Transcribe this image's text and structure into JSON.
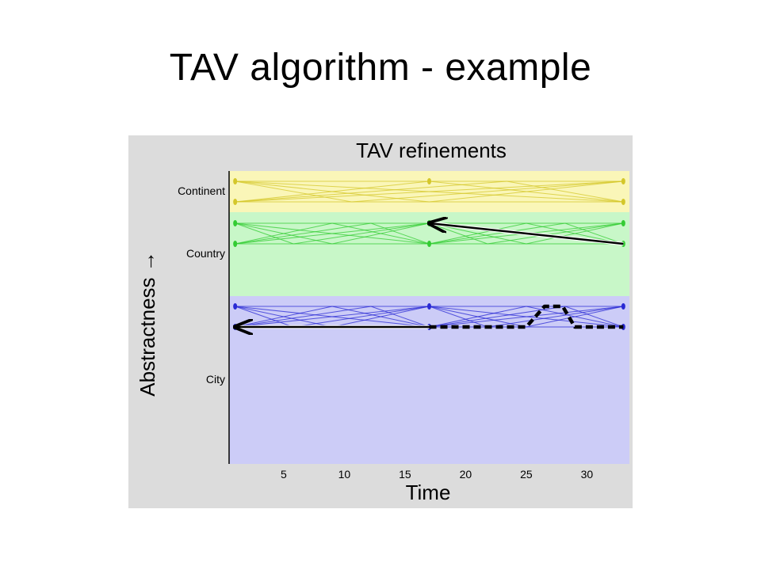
{
  "slide": {
    "title": "TAV algorithm - example"
  },
  "chart_data": {
    "type": "line",
    "title": "TAV refinements",
    "xlabel": "Time",
    "ylabel": "Abstractness →",
    "x_ticks": [
      5,
      10,
      15,
      20,
      25,
      30
    ],
    "xlim": [
      0.5,
      33.5
    ],
    "colors": {
      "Continent": "#d4c72a",
      "Country": "#33cc33",
      "City": "#2a2ad4",
      "Continent_band": "#faf6b8",
      "Country_band": "#c8f7c8",
      "City_band": "#ccccf7"
    },
    "levels": [
      {
        "name": "Continent",
        "rows": [
          1,
          2
        ],
        "nodes": [
          {
            "x": 1,
            "row": 1
          },
          {
            "x": 1,
            "row": 2
          },
          {
            "x": 17,
            "row": 1
          },
          {
            "x": 33,
            "row": 1
          },
          {
            "x": 33,
            "row": 2
          }
        ],
        "segments": [
          [
            1,
            33
          ]
        ]
      },
      {
        "name": "Country",
        "rows": [
          1,
          2
        ],
        "nodes": [
          {
            "x": 1,
            "row": 1
          },
          {
            "x": 1,
            "row": 2
          },
          {
            "x": 17,
            "row": 1
          },
          {
            "x": 17,
            "row": 2
          },
          {
            "x": 33,
            "row": 1
          },
          {
            "x": 33,
            "row": 2
          }
        ],
        "segments": [
          [
            1,
            17
          ],
          [
            17,
            33
          ]
        ]
      },
      {
        "name": "City",
        "rows": [
          1,
          2
        ],
        "nodes": [
          {
            "x": 1,
            "row": 1
          },
          {
            "x": 1,
            "row": 2
          },
          {
            "x": 17,
            "row": 1
          },
          {
            "x": 17,
            "row": 2
          },
          {
            "x": 33,
            "row": 1
          },
          {
            "x": 33,
            "row": 2
          }
        ],
        "segments": [
          [
            1,
            17
          ],
          [
            17,
            33
          ]
        ]
      }
    ],
    "paths": [
      {
        "style": "solid-arrow",
        "color": "#000000",
        "points": [
          {
            "x": 33,
            "level": "Country",
            "row": 2
          },
          {
            "x": 17,
            "level": "Country",
            "row": 1
          }
        ]
      },
      {
        "style": "solid-arrow",
        "color": "#000000",
        "points": [
          {
            "x": 17,
            "level": "City",
            "row": 2
          },
          {
            "x": 1,
            "level": "City",
            "row": 2
          }
        ]
      },
      {
        "style": "dashed",
        "color": "#000000",
        "points": [
          {
            "x": 17,
            "level": "City",
            "row": 2
          },
          {
            "x": 25,
            "level": "City",
            "row": 2
          },
          {
            "x": 26.5,
            "level": "City",
            "row": 1
          },
          {
            "x": 28,
            "level": "City",
            "row": 1
          },
          {
            "x": 29,
            "level": "City",
            "row": 2
          },
          {
            "x": 33,
            "level": "City",
            "row": 2
          }
        ]
      }
    ]
  }
}
